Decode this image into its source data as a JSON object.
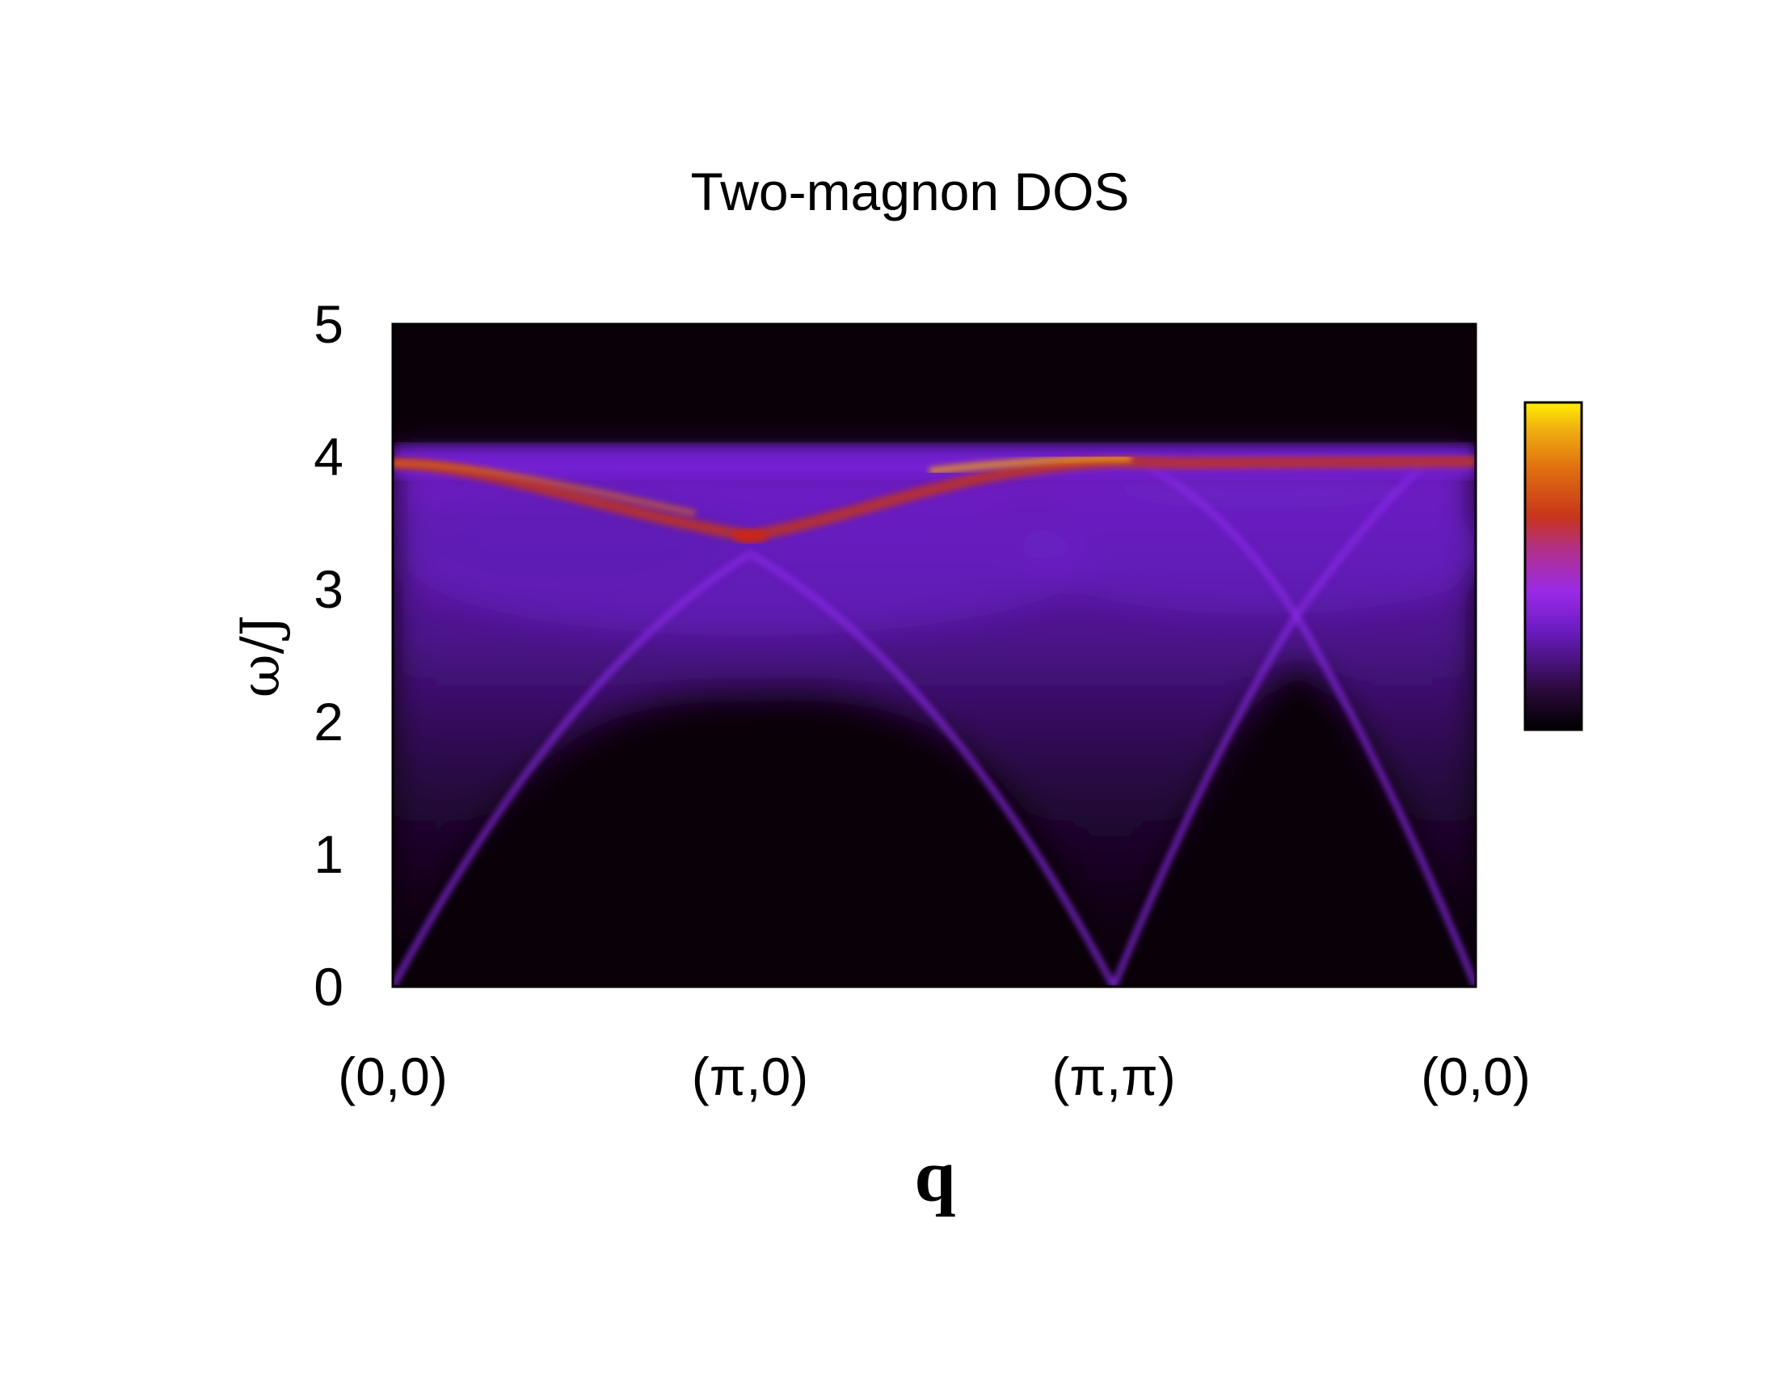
{
  "chart_data": {
    "type": "heatmap",
    "title": "Two-magnon DOS",
    "xlabel": "q",
    "ylabel": "ω/J",
    "ylim": [
      0,
      5
    ],
    "y_ticks": [
      "0",
      "1",
      "2",
      "3",
      "4",
      "5"
    ],
    "x_ticks": [
      "(0,0)",
      "(π,0)",
      "(π,π)",
      "(0,0)"
    ],
    "x_path": [
      "(0,0)",
      "(π,0)",
      "(π,π)",
      "(0,0)"
    ],
    "colormap": [
      "#000000",
      "#2a0a3a",
      "#6a1cc0",
      "#9a2ae8",
      "#b0308a",
      "#c8341c",
      "#e07010",
      "#f0b010",
      "#ffee00"
    ],
    "colorbar": true,
    "features": {
      "upper_edge_omega": 4.0,
      "min_at_pi_0": 3.45,
      "crossing_near_path_segment_3": 2.8
    }
  }
}
